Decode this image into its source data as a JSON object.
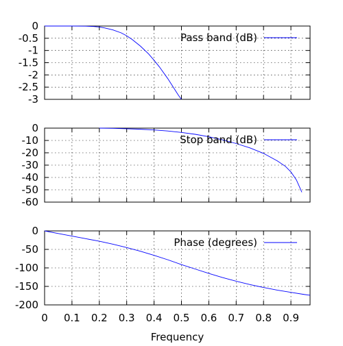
{
  "chart_data": [
    {
      "type": "line",
      "title": "",
      "xlabel": "",
      "ylabel": "",
      "ylim": [
        -3,
        0
      ],
      "xlim": [
        0,
        0.97
      ],
      "yticks": [
        0,
        -0.5,
        -1,
        -1.5,
        -2,
        -2.5,
        -3
      ],
      "ytick_labels": [
        "0",
        "-0.5",
        "-1",
        "-1.5",
        "-2",
        "-2.5",
        "-3"
      ],
      "grid": true,
      "legend_position": "top-right",
      "series": [
        {
          "name": "Pass band (dB)",
          "color": "#0000ff",
          "x": [
            0,
            0.05,
            0.1,
            0.15,
            0.18,
            0.2,
            0.22,
            0.25,
            0.28,
            0.3,
            0.32,
            0.35,
            0.38,
            0.4,
            0.42,
            0.45,
            0.47,
            0.49,
            0.5
          ],
          "y": [
            0,
            0,
            0,
            -0.005,
            -0.02,
            -0.04,
            -0.08,
            -0.16,
            -0.28,
            -0.4,
            -0.55,
            -0.82,
            -1.14,
            -1.4,
            -1.68,
            -2.15,
            -2.5,
            -2.85,
            -3.0
          ]
        }
      ]
    },
    {
      "type": "line",
      "title": "",
      "xlabel": "",
      "ylabel": "",
      "ylim": [
        -60,
        0
      ],
      "xlim": [
        0,
        0.97
      ],
      "yticks": [
        0,
        -10,
        -20,
        -30,
        -40,
        -50,
        -60
      ],
      "ytick_labels": [
        "0",
        "-10",
        "-20",
        "-30",
        "-40",
        "-50",
        "-60"
      ],
      "grid": true,
      "legend_position": "top-right",
      "series": [
        {
          "name": "Stop band (dB)",
          "color": "#0000ff",
          "x": [
            0.2,
            0.25,
            0.3,
            0.35,
            0.4,
            0.45,
            0.5,
            0.55,
            0.6,
            0.65,
            0.7,
            0.75,
            0.8,
            0.85,
            0.88,
            0.9,
            0.92,
            0.94
          ],
          "y": [
            0,
            -0.2,
            -0.5,
            -0.9,
            -1.5,
            -2.3,
            -3.5,
            -5.0,
            -7.0,
            -9.5,
            -12.5,
            -16.0,
            -20.5,
            -26.5,
            -31.0,
            -35.5,
            -42.0,
            -52.0
          ]
        }
      ]
    },
    {
      "type": "line",
      "title": "",
      "xlabel": "Frequency",
      "ylabel": "",
      "ylim": [
        -200,
        0
      ],
      "xlim": [
        0,
        0.97
      ],
      "yticks": [
        0,
        -50,
        -100,
        -150,
        -200
      ],
      "ytick_labels": [
        "0",
        "-50",
        "-100",
        "-150",
        "-200"
      ],
      "xticks": [
        0,
        0.1,
        0.2,
        0.3,
        0.4,
        0.5,
        0.6,
        0.7,
        0.8,
        0.9
      ],
      "xtick_labels": [
        "0",
        "0.1",
        "0.2",
        "0.3",
        "0.4",
        "0.5",
        "0.6",
        "0.7",
        "0.8",
        "0.9"
      ],
      "grid": true,
      "legend_position": "top-right",
      "series": [
        {
          "name": "Phase (degrees)",
          "color": "#0000ff",
          "x": [
            0,
            0.05,
            0.1,
            0.15,
            0.2,
            0.25,
            0.3,
            0.35,
            0.4,
            0.45,
            0.5,
            0.55,
            0.6,
            0.65,
            0.7,
            0.75,
            0.8,
            0.85,
            0.9,
            0.95,
            0.97
          ],
          "y": [
            0,
            -7,
            -14,
            -21,
            -28,
            -36,
            -45,
            -55,
            -66,
            -78,
            -91,
            -103,
            -115,
            -126,
            -136,
            -145,
            -153,
            -160,
            -166,
            -172,
            -174
          ]
        }
      ]
    }
  ]
}
